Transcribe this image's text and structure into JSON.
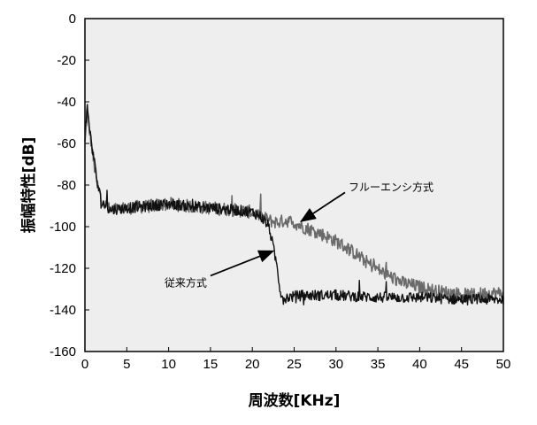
{
  "chart_data": {
    "type": "line",
    "title": "",
    "xlabel": "周波数[KHz]",
    "ylabel": "振幅特性[dB]",
    "xlim": [
      0,
      50
    ],
    "ylim": [
      -160,
      0
    ],
    "x_ticks": [
      0,
      5,
      10,
      15,
      20,
      25,
      30,
      35,
      40,
      45,
      50
    ],
    "x_tick_labels": [
      "0",
      "5",
      "10",
      "15",
      "20",
      "25",
      "30",
      "35",
      "40",
      "45",
      "50"
    ],
    "y_ticks": [
      0,
      -20,
      -40,
      -60,
      -80,
      -100,
      -120,
      -140,
      -160
    ],
    "y_tick_labels": [
      "0",
      "-20",
      "-40",
      "-60",
      "-80",
      "-100",
      "-120",
      "-140",
      "-160"
    ],
    "grid": false,
    "background": "#eeeeee",
    "series": [
      {
        "name": "フルーエンシ方式",
        "color": "#6a6a6a",
        "x": [
          0,
          0.3,
          0.6,
          1,
          1.5,
          2,
          3,
          5,
          8,
          10,
          12,
          15,
          18,
          20,
          21,
          22,
          23,
          24,
          25,
          26,
          28,
          30,
          32,
          34,
          36,
          38,
          40,
          42,
          44,
          46,
          48,
          50
        ],
        "y": [
          -60,
          -45,
          -55,
          -68,
          -80,
          -88,
          -92,
          -91,
          -90,
          -89,
          -90,
          -91,
          -92,
          -93,
          -95,
          -97,
          -98,
          -97,
          -98,
          -100,
          -103,
          -107,
          -112,
          -118,
          -123,
          -127,
          -129,
          -131,
          -132,
          -133,
          -132,
          -132
        ]
      },
      {
        "name": "従来方式",
        "color": "#111111",
        "x": [
          0,
          0.3,
          0.6,
          1,
          1.5,
          2,
          3,
          5,
          8,
          10,
          12,
          15,
          18,
          20,
          21,
          22,
          22.5,
          23,
          23.3,
          23.7,
          24,
          26,
          30,
          35,
          40,
          45,
          48,
          50
        ],
        "y": [
          -55,
          -42,
          -55,
          -65,
          -80,
          -88,
          -92,
          -91,
          -90,
          -89,
          -90,
          -91,
          -92,
          -93,
          -95,
          -100,
          -110,
          -120,
          -130,
          -135,
          -134,
          -133,
          -133,
          -134,
          -134,
          -135,
          -135,
          -135
        ]
      }
    ],
    "annotations": [
      {
        "text": "フルーエンシ方式",
        "series": 0,
        "label_at": [
          31.5,
          -81
        ],
        "arrow_to": [
          26,
          -97
        ]
      },
      {
        "text": "従来方式",
        "series": 1,
        "label_at": [
          9.5,
          -127
        ],
        "arrow_to": [
          22.3,
          -112
        ]
      }
    ]
  }
}
